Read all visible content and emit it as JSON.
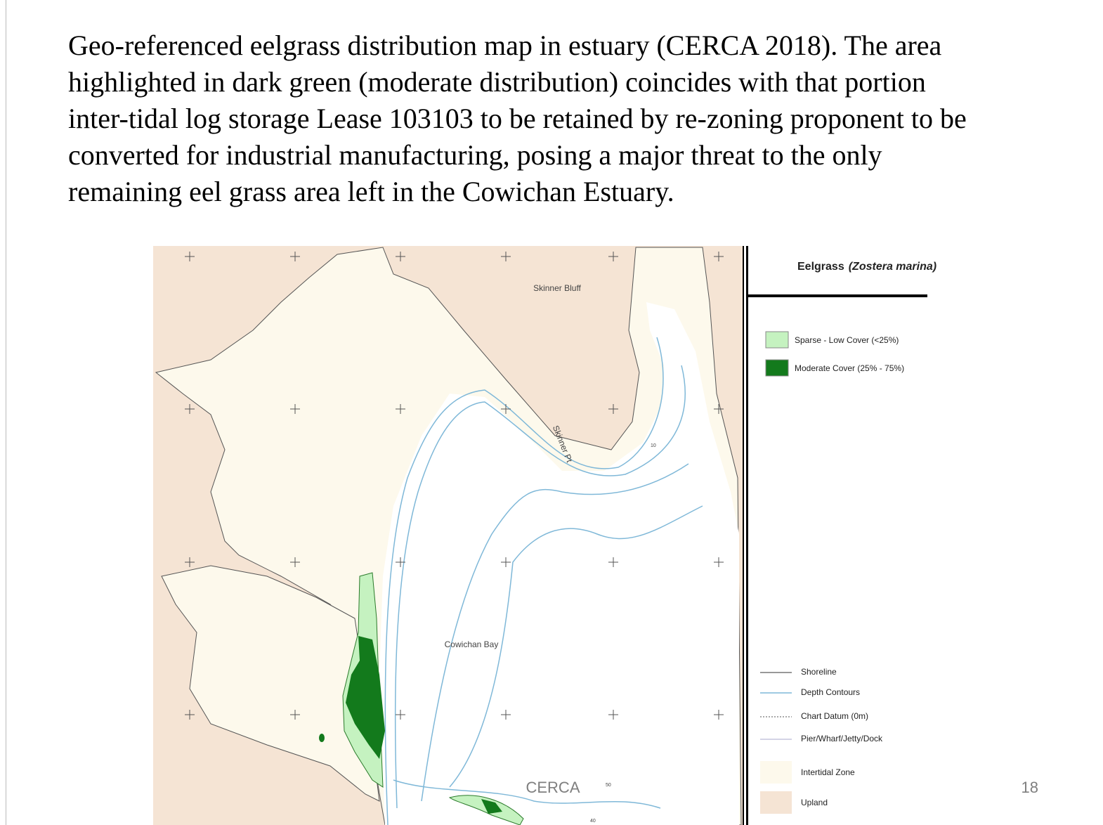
{
  "slide": {
    "caption_lines": [
      "Geo-referenced eelgrass distribution map  in estuary (CERCA 2018). The area",
      "highlighted in dark green (moderate distribution) coincides with that portion",
      "inter-tidal log storage Lease 103103 to be retained by re-zoning proponent to be",
      "converted for industrial manufacturing, posing a major threat to the only",
      "remaining eel grass area left in the  Cowichan Estuary."
    ],
    "footer_left": "CERCA",
    "page_number": "18"
  },
  "map": {
    "labels": {
      "skinner_bluff": "Skinner Bluff",
      "skinner_pt": "Skinner Pt",
      "cowichan_bay": "Cowichan Bay"
    },
    "depth_labels": [
      "10",
      "50",
      "40"
    ],
    "colors": {
      "upland": "#f5e4d4",
      "intertidal": "#fdf9ec",
      "water": "#ffffff",
      "contour": "#7fb8d8",
      "sparse": "#c5f2c0",
      "moderate": "#137a1c"
    }
  },
  "legend": {
    "title": "Eelgrass",
    "title_species": "(Zostera marina)",
    "cover": [
      "Sparse - Low Cover (<25%)",
      "Moderate Cover (25% - 75%)"
    ],
    "features": [
      "Shoreline",
      "Depth Contours",
      "Chart Datum (0m)",
      "Pier/Wharf/Jetty/Dock",
      "Intertidal Zone",
      "Upland"
    ]
  }
}
